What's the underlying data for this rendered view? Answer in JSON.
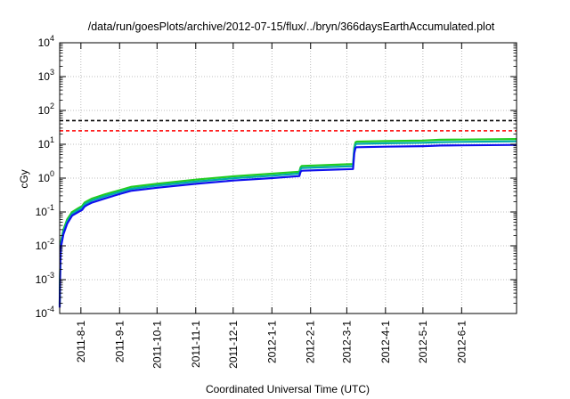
{
  "chart_data": {
    "type": "line",
    "title": "/data/run/goesPlots/archive/2012-07-15/flux/../bryn/366daysEarthAccumulated.plot",
    "xlabel": "Coordinated Universal Time (UTC)",
    "ylabel": "cGy",
    "y_scale": "log",
    "ylim": [
      0.0001,
      10000
    ],
    "y_ticks": [
      {
        "value": 0.0001,
        "base": "10",
        "exp": "-4"
      },
      {
        "value": 0.001,
        "base": "10",
        "exp": "-3"
      },
      {
        "value": 0.01,
        "base": "10",
        "exp": "-2"
      },
      {
        "value": 0.1,
        "base": "10",
        "exp": "-1"
      },
      {
        "value": 1,
        "base": "10",
        "exp": "0"
      },
      {
        "value": 10,
        "base": "10",
        "exp": "1"
      },
      {
        "value": 100,
        "base": "10",
        "exp": "2"
      },
      {
        "value": 1000,
        "base": "10",
        "exp": "3"
      },
      {
        "value": 10000,
        "base": "10",
        "exp": "4"
      }
    ],
    "xlim": [
      "2011-07-15",
      "2012-07-15"
    ],
    "x_ticks": [
      "2011-8-1",
      "2011-9-1",
      "2011-10-1",
      "2011-11-1",
      "2011-12-1",
      "2012-1-1",
      "2012-2-1",
      "2012-3-1",
      "2012-4-1",
      "2012-5-1",
      "2012-6-1"
    ],
    "grid": true,
    "reference_lines": [
      {
        "y": 50,
        "color": "#000000",
        "style": "dashed"
      },
      {
        "y": 25,
        "color": "#ff0000",
        "style": "dashed"
      }
    ],
    "series": [
      {
        "color": "#22cc22",
        "points": [
          [
            "2011-07-15",
            0.0002
          ],
          [
            "2011-07-15T12",
            0.004
          ],
          [
            "2011-07-16",
            0.013
          ],
          [
            "2011-07-18",
            0.03
          ],
          [
            "2011-07-21",
            0.06
          ],
          [
            "2011-07-25",
            0.1
          ],
          [
            "2011-07-30",
            0.13
          ],
          [
            "2011-08-02",
            0.15
          ],
          [
            "2011-08-04",
            0.19
          ],
          [
            "2011-08-06",
            0.21
          ],
          [
            "2011-08-10",
            0.25
          ],
          [
            "2011-08-20",
            0.33
          ],
          [
            "2011-09-01",
            0.44
          ],
          [
            "2011-09-10",
            0.55
          ],
          [
            "2011-10-01",
            0.68
          ],
          [
            "2011-11-01",
            0.9
          ],
          [
            "2011-12-01",
            1.13
          ],
          [
            "2012-01-01",
            1.35
          ],
          [
            "2012-01-23",
            1.55
          ],
          [
            "2012-01-24",
            2.1
          ],
          [
            "2012-01-25",
            2.3
          ],
          [
            "2012-03-06",
            2.6
          ],
          [
            "2012-03-07",
            8.0
          ],
          [
            "2012-03-08",
            11.5
          ],
          [
            "2012-03-09",
            12.0
          ],
          [
            "2012-04-01",
            12.4
          ],
          [
            "2012-05-01",
            12.9
          ],
          [
            "2012-05-15",
            13.6
          ],
          [
            "2012-06-01",
            13.8
          ],
          [
            "2012-07-15",
            14.3
          ]
        ]
      },
      {
        "color": "#00aaaa",
        "points": [
          [
            "2011-07-15",
            0.00017
          ],
          [
            "2011-07-15T12",
            0.0035
          ],
          [
            "2011-07-16",
            0.011
          ],
          [
            "2011-07-18",
            0.026
          ],
          [
            "2011-07-21",
            0.052
          ],
          [
            "2011-07-25",
            0.088
          ],
          [
            "2011-07-30",
            0.115
          ],
          [
            "2011-08-02",
            0.132
          ],
          [
            "2011-08-04",
            0.165
          ],
          [
            "2011-08-06",
            0.185
          ],
          [
            "2011-08-10",
            0.22
          ],
          [
            "2011-08-20",
            0.29
          ],
          [
            "2011-09-01",
            0.39
          ],
          [
            "2011-09-10",
            0.48
          ],
          [
            "2011-10-01",
            0.6
          ],
          [
            "2011-11-01",
            0.79
          ],
          [
            "2011-12-01",
            0.99
          ],
          [
            "2012-01-01",
            1.18
          ],
          [
            "2012-01-23",
            1.36
          ],
          [
            "2012-01-24",
            1.85
          ],
          [
            "2012-01-25",
            2.0
          ],
          [
            "2012-03-06",
            2.25
          ],
          [
            "2012-03-07",
            6.9
          ],
          [
            "2012-03-08",
            9.9
          ],
          [
            "2012-03-09",
            10.3
          ],
          [
            "2012-04-01",
            10.7
          ],
          [
            "2012-05-01",
            11.1
          ],
          [
            "2012-05-15",
            11.6
          ],
          [
            "2012-06-01",
            11.8
          ],
          [
            "2012-07-15",
            12.2
          ]
        ]
      },
      {
        "color": "#1010ee",
        "points": [
          [
            "2011-07-15",
            0.00015
          ],
          [
            "2011-07-15T12",
            0.003
          ],
          [
            "2011-07-16",
            0.009
          ],
          [
            "2011-07-18",
            0.022
          ],
          [
            "2011-07-21",
            0.045
          ],
          [
            "2011-07-25",
            0.078
          ],
          [
            "2011-07-30",
            0.1
          ],
          [
            "2011-08-02",
            0.115
          ],
          [
            "2011-08-04",
            0.145
          ],
          [
            "2011-08-06",
            0.16
          ],
          [
            "2011-08-10",
            0.19
          ],
          [
            "2011-08-20",
            0.25
          ],
          [
            "2011-09-01",
            0.34
          ],
          [
            "2011-09-10",
            0.42
          ],
          [
            "2011-10-01",
            0.52
          ],
          [
            "2011-11-01",
            0.68
          ],
          [
            "2011-12-01",
            0.85
          ],
          [
            "2012-01-01",
            1.0
          ],
          [
            "2012-01-23",
            1.15
          ],
          [
            "2012-01-24",
            1.55
          ],
          [
            "2012-01-25",
            1.65
          ],
          [
            "2012-03-06",
            1.85
          ],
          [
            "2012-03-07",
            5.5
          ],
          [
            "2012-03-08",
            7.9
          ],
          [
            "2012-03-09",
            8.2
          ],
          [
            "2012-04-01",
            8.5
          ],
          [
            "2012-05-01",
            8.8
          ],
          [
            "2012-05-15",
            9.2
          ],
          [
            "2012-06-01",
            9.3
          ],
          [
            "2012-07-15",
            9.6
          ]
        ]
      }
    ]
  }
}
